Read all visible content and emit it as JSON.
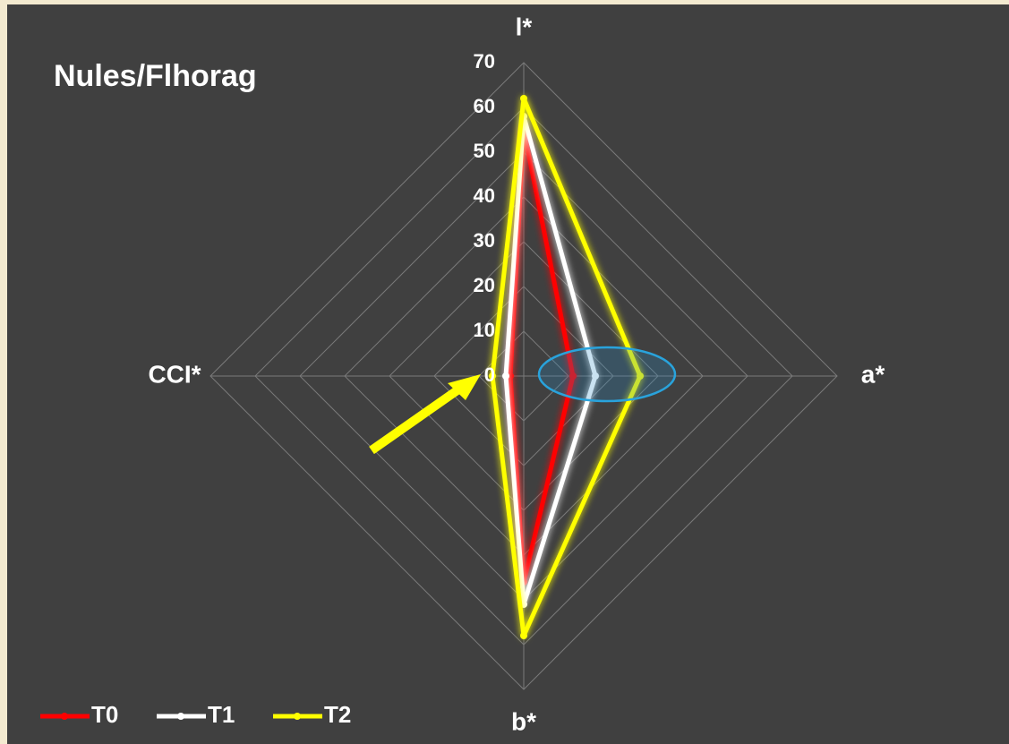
{
  "chart_data": {
    "type": "radar",
    "title": "Nules/Flhorag",
    "categories": [
      "l*",
      "a*",
      "b*",
      "CCI*"
    ],
    "series": [
      {
        "name": "T0",
        "color": "#ff0000",
        "values": [
          55,
          11,
          46,
          3
        ]
      },
      {
        "name": "T1",
        "color": "#ffffff",
        "values": [
          58,
          16,
          51,
          4
        ]
      },
      {
        "name": "T2",
        "color": "#ffff00",
        "values": [
          62,
          26,
          58,
          7
        ]
      }
    ],
    "rlim": [
      0,
      70
    ],
    "rticks": [
      0,
      10,
      20,
      30,
      40,
      50,
      60,
      70
    ],
    "grid": true,
    "legend": "bottom-left"
  }
}
